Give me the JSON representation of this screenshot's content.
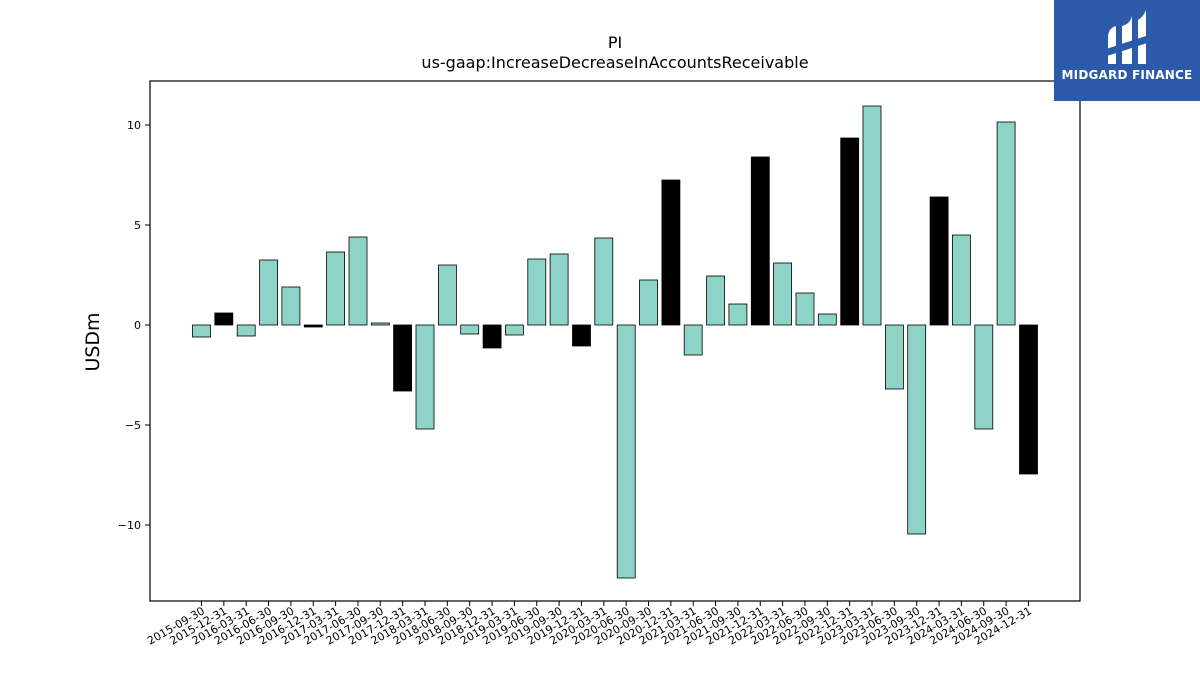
{
  "brand": {
    "name": "MIDGARD FINANCE",
    "color": "#2b5aa8"
  },
  "chart_data": {
    "type": "bar",
    "title": "PI",
    "subtitle": "us-gaap:IncreaseDecreaseInAccountsReceivable",
    "xlabel": "",
    "ylabel": "USDm",
    "ylim": [
      -13.8,
      12.2
    ],
    "yticks": [
      -10,
      -5,
      0,
      5,
      10
    ],
    "ytick_labels": [
      "−10",
      "−5",
      "0",
      "5",
      "10"
    ],
    "grid": false,
    "colors": {
      "default": "#8dd3c7",
      "highlight": "#000000",
      "edge": "#000000"
    },
    "categories": [
      "2015-09-30",
      "2015-12-31",
      "2016-03-31",
      "2016-06-30",
      "2016-09-30",
      "2016-12-31",
      "2017-03-31",
      "2017-06-30",
      "2017-09-30",
      "2017-12-31",
      "2018-03-31",
      "2018-06-30",
      "2018-09-30",
      "2018-12-31",
      "2019-03-31",
      "2019-06-30",
      "2019-09-30",
      "2019-12-31",
      "2020-03-31",
      "2020-06-30",
      "2020-09-30",
      "2020-12-31",
      "2021-03-31",
      "2021-06-30",
      "2021-09-30",
      "2021-12-31",
      "2022-03-31",
      "2022-06-30",
      "2022-09-30",
      "2022-12-31",
      "2023-03-31",
      "2023-06-30",
      "2023-09-30",
      "2023-12-31",
      "2024-03-31",
      "2024-06-30",
      "2024-09-30",
      "2024-12-31"
    ],
    "values": [
      -0.6,
      0.6,
      -0.55,
      3.25,
      1.9,
      -0.1,
      3.65,
      4.4,
      0.1,
      -3.3,
      -5.2,
      3.0,
      -0.45,
      -1.15,
      -0.5,
      3.3,
      3.55,
      -1.05,
      4.35,
      -12.65,
      2.25,
      7.25,
      -1.5,
      2.45,
      1.05,
      8.4,
      3.1,
      1.6,
      0.55,
      9.35,
      10.95,
      -3.2,
      -10.45,
      6.4,
      4.5,
      -5.2,
      10.15,
      -7.45
    ],
    "highlight": [
      false,
      true,
      false,
      false,
      false,
      true,
      false,
      false,
      false,
      true,
      false,
      false,
      false,
      true,
      false,
      false,
      false,
      true,
      false,
      false,
      false,
      true,
      false,
      false,
      false,
      true,
      false,
      false,
      false,
      true,
      false,
      false,
      false,
      true,
      false,
      false,
      false,
      true
    ]
  }
}
